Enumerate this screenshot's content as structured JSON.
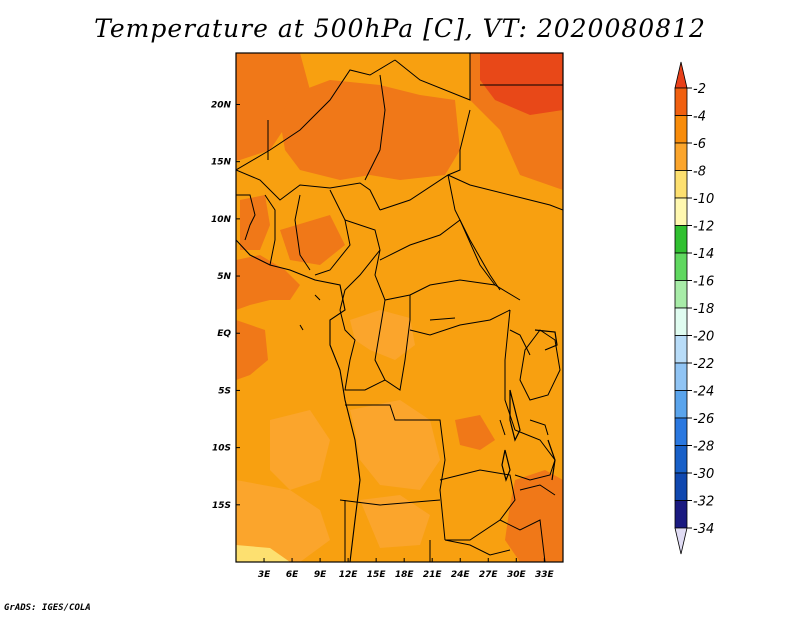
{
  "title": "Temperature at 500hPa [C], VT: 2020080812",
  "credit": "GrADS: IGES/COLA",
  "map": {
    "lon_range": [
      0,
      35
    ],
    "lat_range": [
      -20,
      24.5
    ],
    "x_ticks": [
      "3E",
      "6E",
      "9E",
      "12E",
      "15E",
      "18E",
      "21E",
      "24E",
      "27E",
      "30E",
      "33E"
    ],
    "y_ticks": [
      "20N",
      "15N",
      "10N",
      "5N",
      "EQ",
      "5S",
      "10S",
      "15S"
    ]
  },
  "colorbar": {
    "labels": [
      "-2",
      "-4",
      "-6",
      "-8",
      "-10",
      "-12",
      "-14",
      "-16",
      "-18",
      "-20",
      "-22",
      "-24",
      "-26",
      "-28",
      "-30",
      "-32",
      "-34"
    ],
    "colors": [
      "#e8401a",
      "#f06010",
      "#f88c0a",
      "#fba52c",
      "#fde070",
      "#fff8b0",
      "#30c030",
      "#60d860",
      "#a8eca8",
      "#e0fcf0",
      "#b8dcf8",
      "#90c4f4",
      "#5aa4ec",
      "#2a78e0",
      "#1860c8",
      "#1048b0",
      "#1a1a80"
    ],
    "under_color": "#e0dcf4"
  }
}
